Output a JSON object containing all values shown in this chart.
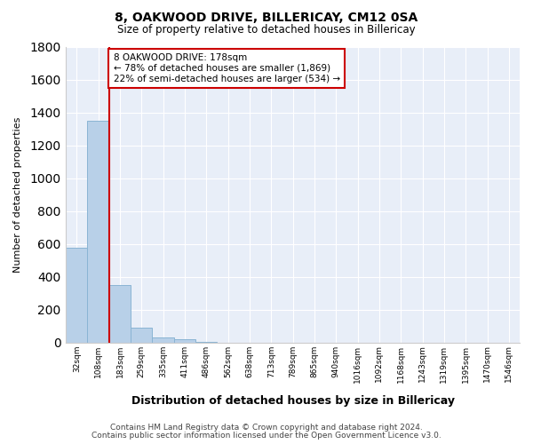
{
  "title1": "8, OAKWOOD DRIVE, BILLERICAY, CM12 0SA",
  "title2": "Size of property relative to detached houses in Billericay",
  "xlabel": "Distribution of detached houses by size in Billericay",
  "ylabel": "Number of detached properties",
  "categories": [
    "32sqm",
    "108sqm",
    "183sqm",
    "259sqm",
    "335sqm",
    "411sqm",
    "486sqm",
    "562sqm",
    "638sqm",
    "713sqm",
    "789sqm",
    "865sqm",
    "940sqm",
    "1016sqm",
    "1092sqm",
    "1168sqm",
    "1243sqm",
    "1319sqm",
    "1395sqm",
    "1470sqm",
    "1546sqm"
  ],
  "bar_values": [
    580,
    1350,
    350,
    90,
    30,
    18,
    5,
    0,
    0,
    0,
    0,
    0,
    0,
    0,
    0,
    0,
    0,
    0,
    0,
    0,
    0
  ],
  "bar_color": "#b8d0e8",
  "bar_edgecolor": "#8ab4d4",
  "property_line_color": "#cc0000",
  "ylim": [
    0,
    1800
  ],
  "yticks": [
    0,
    200,
    400,
    600,
    800,
    1000,
    1200,
    1400,
    1600,
    1800
  ],
  "annotation_line1": "8 OAKWOOD DRIVE: 178sqm",
  "annotation_line2": "← 78% of detached houses are smaller (1,869)",
  "annotation_line3": "22% of semi-detached houses are larger (534) →",
  "annotation_box_color": "#ffffff",
  "annotation_box_edgecolor": "#cc0000",
  "footer1": "Contains HM Land Registry data © Crown copyright and database right 2024.",
  "footer2": "Contains public sector information licensed under the Open Government Licence v3.0.",
  "background_color": "#ffffff",
  "plot_bg_color": "#e8eef8",
  "grid_color": "#ffffff"
}
